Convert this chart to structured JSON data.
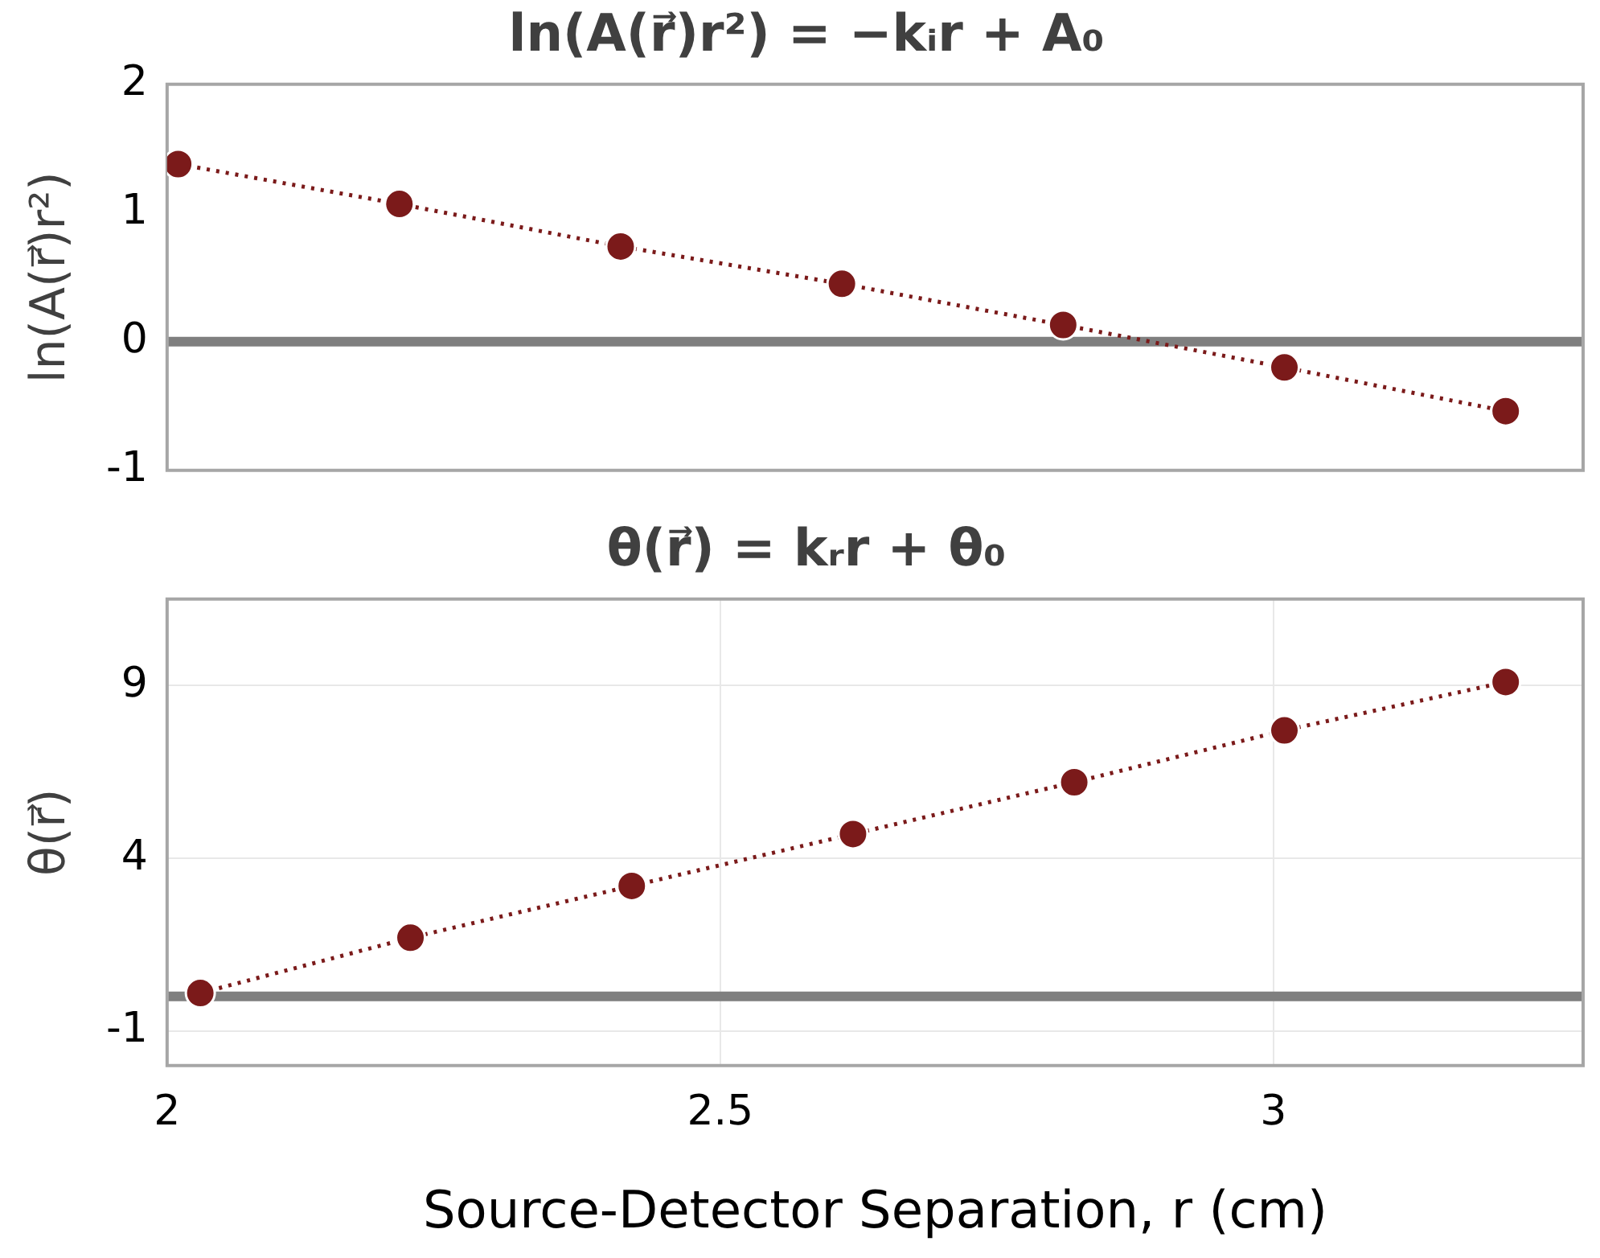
{
  "chart_data": [
    {
      "type": "line",
      "title": "ln(A(r⃗)r²) = −kᵢr + A₀",
      "ylabel": "ln(A(r⃗)r²)",
      "xlim": [
        2,
        3.28
      ],
      "xticks": [
        2,
        2.5,
        3
      ],
      "ylim": [
        -1,
        2
      ],
      "yticks": [
        -1,
        0,
        1,
        2
      ],
      "tick_labels": "y",
      "grid": false,
      "legend": false,
      "marker": "circle",
      "line_style": "dotted",
      "ref_lines": [
        {
          "axis": "y",
          "value": 0,
          "color": "#7f7f7f"
        }
      ],
      "series": [
        {
          "color": "#7b1a1a",
          "x": [
            2.01,
            2.21,
            2.41,
            2.61,
            2.81,
            3.01,
            3.21
          ],
          "values": [
            1.38,
            1.07,
            0.74,
            0.45,
            0.13,
            -0.2,
            -0.54
          ]
        }
      ]
    },
    {
      "type": "line",
      "title": "θ(r⃗) = kᵣr + θ₀",
      "ylabel": "θ(r⃗)",
      "xlabel": "Source-Detector Separation, r (cm)",
      "xlim": [
        2,
        3.28
      ],
      "xticks": [
        2,
        2.5,
        3
      ],
      "ylim": [
        -2,
        11.5
      ],
      "yticks": [
        -1,
        4,
        9
      ],
      "grid": true,
      "legend": false,
      "marker": "circle",
      "line_style": "dotted",
      "ref_lines": [
        {
          "axis": "y",
          "value": 0,
          "color": "#7f7f7f"
        }
      ],
      "series": [
        {
          "color": "#7b1a1a",
          "x": [
            2.03,
            2.22,
            2.42,
            2.62,
            2.82,
            3.01,
            3.21
          ],
          "values": [
            0.1,
            1.7,
            3.2,
            4.7,
            6.2,
            7.7,
            9.1
          ]
        }
      ]
    }
  ]
}
